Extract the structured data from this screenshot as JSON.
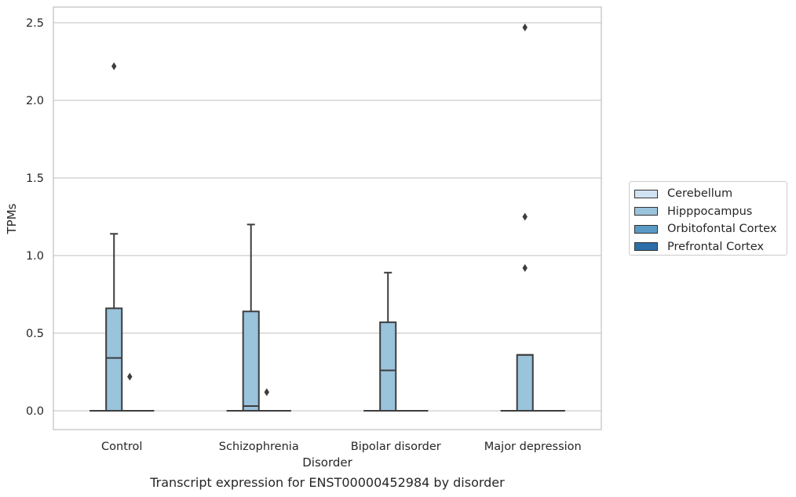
{
  "chart_data": {
    "type": "box",
    "xlabel": "Disorder",
    "ylabel": "TPMs",
    "caption": "Transcript expression for ENST00000452984 by disorder",
    "categories": [
      "Control",
      "Schizophrenia",
      "Bipolar disorder",
      "Major depression"
    ],
    "ylim": [
      -0.12,
      2.6
    ],
    "yticks": [
      "0.0",
      "0.5",
      "1.0",
      "1.5",
      "2.0",
      "2.5"
    ],
    "ytick_values": [
      0,
      0.5,
      1.0,
      1.5,
      2.0,
      2.5
    ],
    "grid": true,
    "legend_position": "right",
    "series": [
      {
        "name": "Cerebellum",
        "color": "#d1e2f2",
        "boxes": [
          {
            "q1": 0,
            "median": 0,
            "q3": 0,
            "whisker_low": 0,
            "whisker_high": 0,
            "outliers": []
          },
          {
            "q1": 0,
            "median": 0,
            "q3": 0,
            "whisker_low": 0,
            "whisker_high": 0,
            "outliers": []
          },
          {
            "q1": 0,
            "median": 0,
            "q3": 0,
            "whisker_low": 0,
            "whisker_high": 0,
            "outliers": []
          },
          {
            "q1": 0,
            "median": 0,
            "q3": 0,
            "whisker_low": 0,
            "whisker_high": 0,
            "outliers": []
          }
        ]
      },
      {
        "name": "Hipppocampus",
        "color": "#9ac3dc",
        "boxes": [
          {
            "q1": 0,
            "median": 0.34,
            "q3": 0.66,
            "whisker_low": 0,
            "whisker_high": 1.14,
            "outliers": [
              2.22
            ]
          },
          {
            "q1": 0,
            "median": 0.03,
            "q3": 0.64,
            "whisker_low": 0,
            "whisker_high": 1.2,
            "outliers": []
          },
          {
            "q1": 0,
            "median": 0.26,
            "q3": 0.57,
            "whisker_low": 0,
            "whisker_high": 0.89,
            "outliers": []
          },
          {
            "q1": 0,
            "median": 0.36,
            "q3": 0.36,
            "whisker_low": 0,
            "whisker_high": 0.36,
            "outliers": [
              0.92,
              1.25,
              2.47
            ]
          }
        ]
      },
      {
        "name": "Orbitofontal Cortex",
        "color": "#5a9ac6",
        "boxes": [
          {
            "q1": 0,
            "median": 0,
            "q3": 0,
            "whisker_low": 0,
            "whisker_high": 0,
            "outliers": [
              0.22
            ]
          },
          {
            "q1": 0,
            "median": 0,
            "q3": 0,
            "whisker_low": 0,
            "whisker_high": 0,
            "outliers": [
              0.12
            ]
          },
          {
            "q1": 0,
            "median": 0,
            "q3": 0,
            "whisker_low": 0,
            "whisker_high": 0,
            "outliers": []
          },
          {
            "q1": 0,
            "median": 0,
            "q3": 0,
            "whisker_low": 0,
            "whisker_high": 0,
            "outliers": []
          }
        ]
      },
      {
        "name": "Prefrontal Cortex",
        "color": "#2c6ea8",
        "boxes": [
          {
            "q1": 0,
            "median": 0,
            "q3": 0,
            "whisker_low": 0,
            "whisker_high": 0,
            "outliers": []
          },
          {
            "q1": 0,
            "median": 0,
            "q3": 0,
            "whisker_low": 0,
            "whisker_high": 0,
            "outliers": []
          },
          {
            "q1": 0,
            "median": 0,
            "q3": 0,
            "whisker_low": 0,
            "whisker_high": 0,
            "outliers": []
          },
          {
            "q1": 0,
            "median": 0,
            "q3": 0,
            "whisker_low": 0,
            "whisker_high": 0,
            "outliers": []
          }
        ]
      }
    ]
  }
}
